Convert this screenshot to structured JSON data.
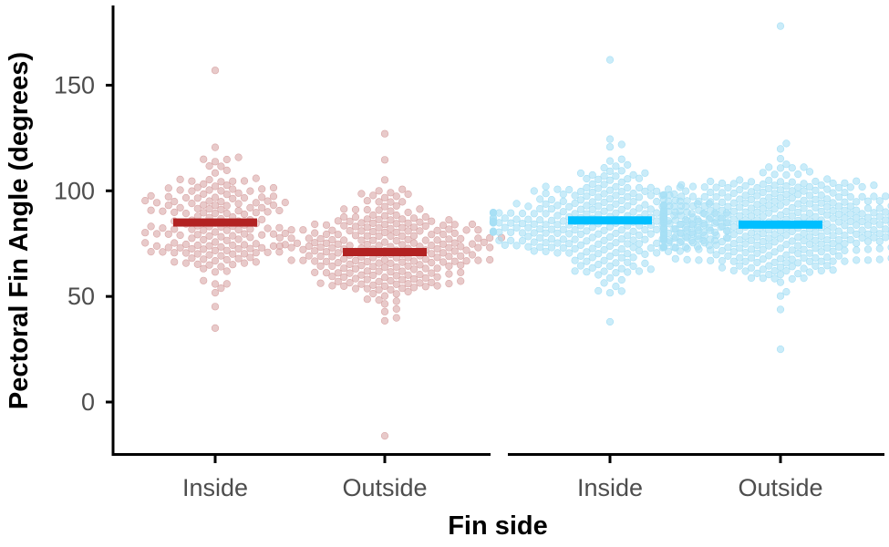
{
  "chart_data": {
    "type": "scatter",
    "subtype": "beeswarm",
    "title": "",
    "xlabel": "Fin side",
    "ylabel": "Pectoral Fin Angle (degrees)",
    "ylim": [
      -25,
      180
    ],
    "yticks": [
      0,
      50,
      100,
      150
    ],
    "grid": false,
    "legend": "none",
    "panels": [
      {
        "name": "panel-1",
        "color": "#B22222",
        "point_color": "#d9a6a6",
        "categories": [
          "Inside",
          "Outside"
        ],
        "groups": [
          {
            "category": "Inside",
            "median": 85,
            "n": 180,
            "center": 84,
            "spread": 22,
            "min": 35,
            "max": 157,
            "seed": 11
          },
          {
            "category": "Outside",
            "median": 71,
            "n": 260,
            "center": 72,
            "spread": 21,
            "min": -16,
            "max": 127,
            "seed": 23
          }
        ]
      },
      {
        "name": "panel-2",
        "color": "#00BFFF",
        "point_color": "#a6dff5",
        "categories": [
          "Inside",
          "Outside"
        ],
        "groups": [
          {
            "category": "Inside",
            "median": 86,
            "n": 320,
            "center": 86,
            "spread": 20,
            "min": 38,
            "max": 162,
            "seed": 37
          },
          {
            "category": "Outside",
            "median": 84,
            "n": 460,
            "center": 84,
            "spread": 19,
            "min": 25,
            "max": 178,
            "seed": 53
          }
        ]
      }
    ]
  }
}
